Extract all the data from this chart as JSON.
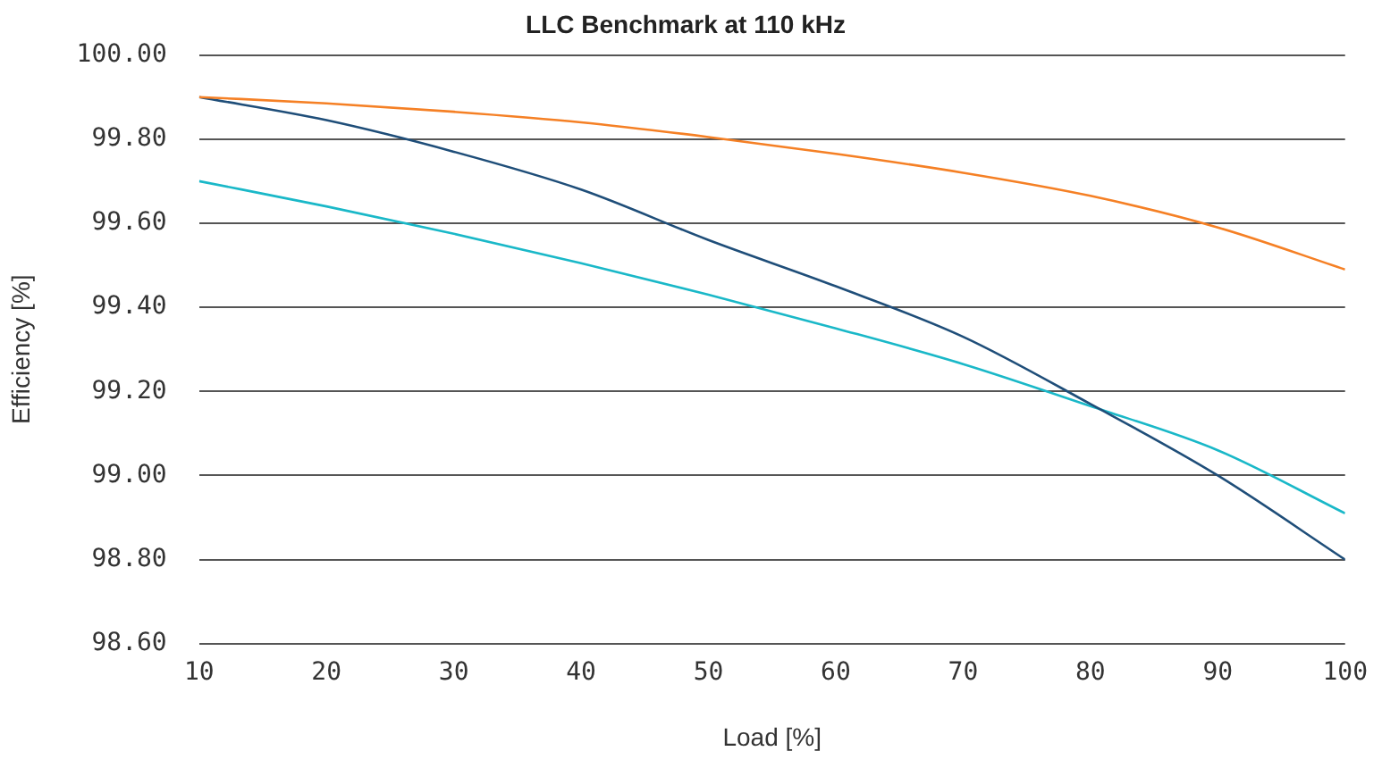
{
  "chart_data": {
    "type": "line",
    "title": "LLC Benchmark at 110 kHz",
    "xlabel": "Load [%]",
    "ylabel": "Efficiency [%]",
    "x": [
      10,
      20,
      30,
      40,
      50,
      60,
      70,
      80,
      90,
      100
    ],
    "series": [
      {
        "color": "#f58025",
        "values": [
          99.9,
          99.885,
          99.865,
          99.84,
          99.805,
          99.765,
          99.72,
          99.665,
          99.59,
          99.49
        ]
      },
      {
        "color": "#1f4e79",
        "values": [
          99.9,
          99.845,
          99.77,
          99.68,
          99.56,
          99.45,
          99.33,
          99.17,
          99.0,
          98.8
        ]
      },
      {
        "color": "#1ab8c8",
        "values": [
          99.7,
          99.64,
          99.575,
          99.505,
          99.43,
          99.35,
          99.265,
          99.165,
          99.06,
          98.91
        ]
      }
    ],
    "xlim": [
      10,
      100
    ],
    "xticks": [
      10,
      20,
      30,
      40,
      50,
      60,
      70,
      80,
      90,
      100
    ],
    "ylim": [
      98.6,
      100
    ],
    "yticks": [
      {
        "value": 98.6,
        "label": "98.60"
      },
      {
        "value": 98.8,
        "label": "98.80"
      },
      {
        "value": 99,
        "label": "99.00"
      },
      {
        "value": 99.2,
        "label": "99.20"
      },
      {
        "value": 99.4,
        "label": "99.40"
      },
      {
        "value": 99.6,
        "label": "99.60"
      },
      {
        "value": 99.8,
        "label": "99.80"
      },
      {
        "value": 100,
        "label": "100.00"
      }
    ],
    "grid": "y",
    "legend": false,
    "marker": "none",
    "line_style": "solid"
  }
}
